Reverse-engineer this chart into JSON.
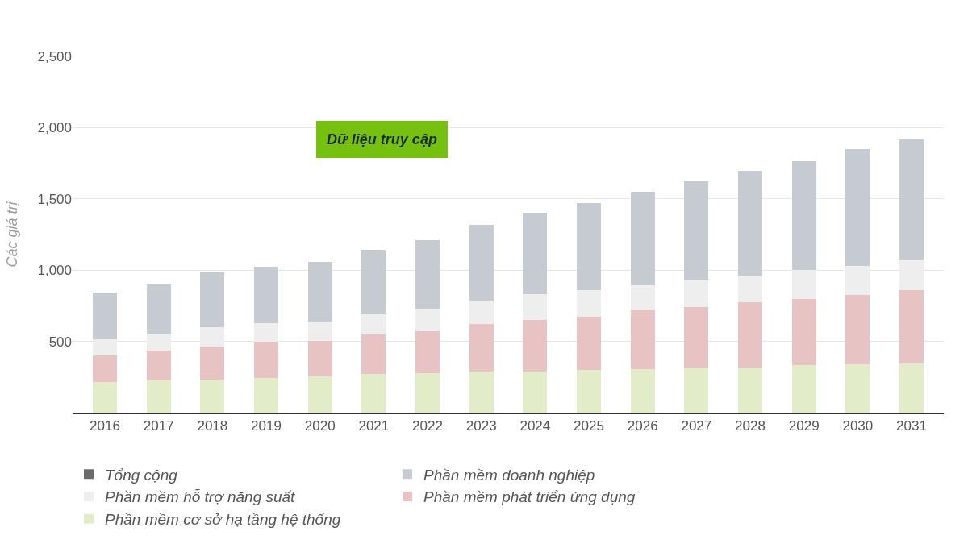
{
  "chart_data": {
    "type": "bar",
    "stacked": true,
    "ylabel": "Các giá trị",
    "categories": [
      "2016",
      "2017",
      "2018",
      "2019",
      "2020",
      "2021",
      "2022",
      "2023",
      "2024",
      "2025",
      "2026",
      "2027",
      "2028",
      "2029",
      "2030",
      "2031"
    ],
    "series": [
      {
        "name": "Phần mềm cơ sở hạ tầng hệ thống",
        "color": "#e2ecc8",
        "values": [
          215,
          227,
          233,
          245,
          252,
          270,
          276,
          288,
          288,
          301,
          307,
          319,
          319,
          331,
          337,
          343
        ]
      },
      {
        "name": "Phần mềm phát triển ứng dụng",
        "color": "#e8c3c4",
        "values": [
          184,
          209,
          233,
          252,
          251,
          276,
          295,
          332,
          362,
          374,
          411,
          423,
          454,
          467,
          491,
          516
        ]
      },
      {
        "name": "Phần mềm hỗ trợ năng suất",
        "color": "#eeeeee",
        "values": [
          116,
          116,
          135,
          129,
          135,
          147,
          158,
          169,
          180,
          184,
          178,
          191,
          190,
          202,
          203,
          215
        ]
      },
      {
        "name": "Phần mềm doanh nghiệp",
        "color": "#c6cbd1",
        "values": [
          325,
          350,
          381,
          399,
          417,
          448,
          480,
          530,
          575,
          613,
          656,
          693,
          736,
          767,
          816,
          846
        ]
      },
      {
        "name": "Tổng cộng",
        "color": "#6b6b6b",
        "values": [
          null,
          null,
          null,
          null,
          null,
          null,
          null,
          null,
          null,
          null,
          null,
          null,
          null,
          null,
          null,
          null
        ]
      }
    ],
    "ylim": [
      0,
      2500
    ],
    "yticks": [
      {
        "value": 500,
        "label": "500"
      },
      {
        "value": 1000,
        "label": "1,000"
      },
      {
        "value": 1500,
        "label": "1,500"
      },
      {
        "value": 2000,
        "label": "2,000"
      },
      {
        "value": 2500,
        "label": "2,500"
      }
    ],
    "grid": "y",
    "legend": "bottom",
    "annotations": [
      "Dữ liệu truy cập"
    ]
  }
}
